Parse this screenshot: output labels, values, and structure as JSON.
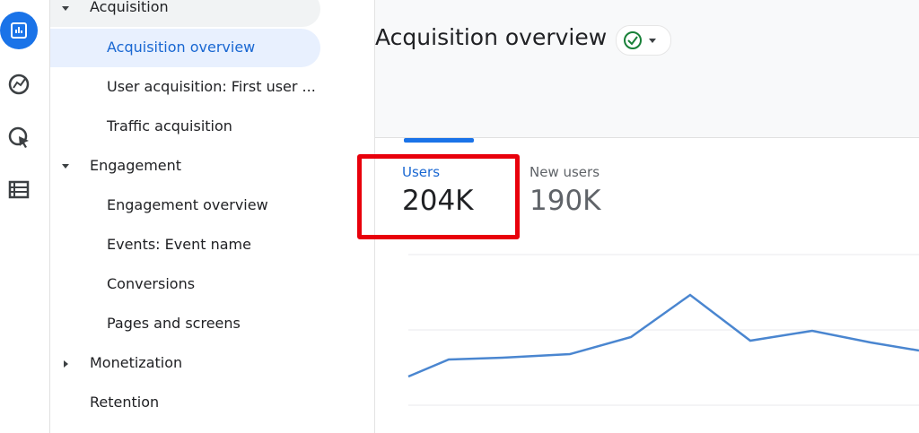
{
  "nav": {
    "items": [
      {
        "label": "Acquisition"
      },
      {
        "label": "Acquisition overview"
      },
      {
        "label": "User acquisition: First user ..."
      },
      {
        "label": "Traffic acquisition"
      },
      {
        "label": "Engagement"
      },
      {
        "label": "Engagement overview"
      },
      {
        "label": "Events: Event name"
      },
      {
        "label": "Conversions"
      },
      {
        "label": "Pages and screens"
      },
      {
        "label": "Monetization"
      },
      {
        "label": "Retention"
      }
    ]
  },
  "header": {
    "title": "Acquisition overview"
  },
  "card": {
    "metrics": [
      {
        "label": "Users",
        "value": "204K"
      },
      {
        "label": "New users",
        "value": "190K"
      }
    ]
  }
}
